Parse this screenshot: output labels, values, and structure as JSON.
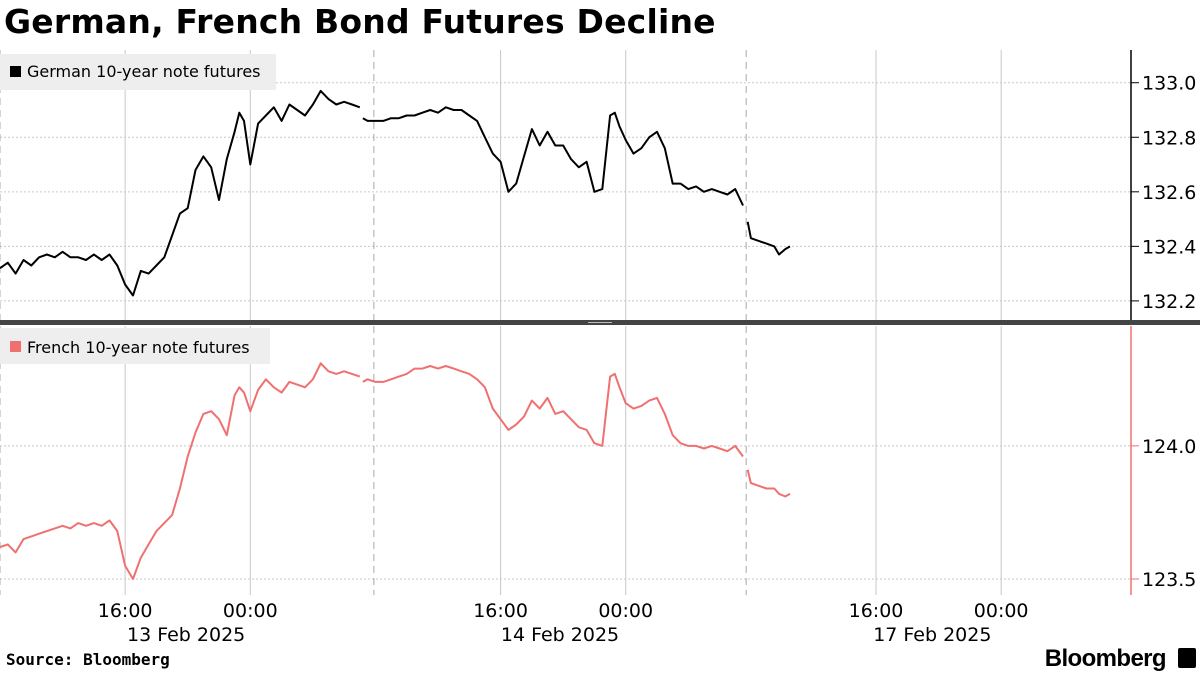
{
  "title": "German, French Bond Futures Decline",
  "source": "Source: Bloomberg",
  "brand": "Bloomberg",
  "colors": {
    "german": "#000000",
    "french": "#f07070",
    "grid": "#c8c8c8",
    "legend_bg": "#eeeeee"
  },
  "chart_data": [
    {
      "type": "line",
      "title": "",
      "series": [
        {
          "name": "German 10-year note futures",
          "color": "#000000"
        }
      ],
      "ylim": [
        132.13,
        133.12
      ],
      "yticks": [
        132.2,
        132.4,
        132.6,
        132.8,
        133.0
      ],
      "ytick_labels": [
        "132.2",
        "132.4",
        "132.6",
        "132.8",
        "133.0"
      ],
      "legend_position": "top-left",
      "x_unit": "trading hours from 13 Feb 2025 08:00",
      "segments": [
        [
          [
            0.0,
            132.32
          ],
          [
            0.5,
            132.34
          ],
          [
            1.0,
            132.3
          ],
          [
            1.5,
            132.35
          ],
          [
            2.0,
            132.33
          ],
          [
            2.5,
            132.36
          ],
          [
            3.0,
            132.37
          ],
          [
            3.5,
            132.36
          ],
          [
            4.0,
            132.38
          ],
          [
            4.5,
            132.36
          ],
          [
            5.0,
            132.36
          ],
          [
            5.5,
            132.35
          ],
          [
            6.0,
            132.37
          ],
          [
            6.5,
            132.35
          ],
          [
            7.0,
            132.37
          ],
          [
            7.5,
            132.33
          ],
          [
            8.0,
            132.26
          ],
          [
            8.5,
            132.22
          ],
          [
            9.0,
            132.31
          ],
          [
            9.5,
            132.3
          ],
          [
            10.0,
            132.33
          ],
          [
            10.5,
            132.36
          ],
          [
            11.0,
            132.44
          ],
          [
            11.5,
            132.52
          ],
          [
            12.0,
            132.54
          ],
          [
            12.5,
            132.68
          ],
          [
            13.0,
            132.73
          ],
          [
            13.5,
            132.69
          ],
          [
            14.0,
            132.57
          ],
          [
            14.5,
            132.72
          ],
          [
            15.0,
            132.82
          ],
          [
            15.3,
            132.89
          ],
          [
            15.6,
            132.86
          ],
          [
            16.0,
            132.7
          ],
          [
            16.5,
            132.85
          ],
          [
            17.0,
            132.88
          ],
          [
            17.5,
            132.91
          ],
          [
            18.0,
            132.86
          ],
          [
            18.5,
            132.92
          ],
          [
            19.0,
            132.9
          ],
          [
            19.5,
            132.88
          ],
          [
            20.0,
            132.92
          ],
          [
            20.5,
            132.97
          ],
          [
            21.0,
            132.94
          ],
          [
            21.5,
            132.92
          ],
          [
            22.0,
            132.93
          ],
          [
            22.5,
            132.92
          ],
          [
            23.0,
            132.91
          ]
        ],
        [
          [
            23.2,
            132.87
          ],
          [
            23.5,
            132.86
          ],
          [
            24.0,
            132.86
          ],
          [
            24.5,
            132.86
          ],
          [
            25.0,
            132.87
          ],
          [
            25.5,
            132.87
          ],
          [
            26.0,
            132.88
          ],
          [
            26.5,
            132.88
          ],
          [
            27.0,
            132.89
          ],
          [
            27.5,
            132.9
          ],
          [
            28.0,
            132.89
          ],
          [
            28.5,
            132.91
          ],
          [
            29.0,
            132.9
          ],
          [
            29.5,
            132.9
          ],
          [
            30.0,
            132.88
          ],
          [
            30.5,
            132.86
          ],
          [
            31.0,
            132.8
          ],
          [
            31.5,
            132.74
          ],
          [
            32.0,
            132.71
          ],
          [
            32.5,
            132.6
          ],
          [
            33.0,
            132.63
          ],
          [
            33.5,
            132.73
          ],
          [
            34.0,
            132.83
          ],
          [
            34.5,
            132.77
          ],
          [
            35.0,
            132.82
          ],
          [
            35.5,
            132.77
          ],
          [
            36.0,
            132.77
          ],
          [
            36.5,
            132.72
          ],
          [
            37.0,
            132.69
          ],
          [
            37.5,
            132.71
          ],
          [
            38.0,
            132.6
          ],
          [
            38.5,
            132.61
          ],
          [
            39.0,
            132.88
          ],
          [
            39.3,
            132.89
          ],
          [
            39.6,
            132.84
          ],
          [
            40.0,
            132.79
          ],
          [
            40.5,
            132.74
          ],
          [
            41.0,
            132.76
          ],
          [
            41.5,
            132.8
          ],
          [
            42.0,
            132.82
          ],
          [
            42.5,
            132.76
          ],
          [
            43.0,
            132.63
          ],
          [
            43.5,
            132.63
          ],
          [
            44.0,
            132.61
          ],
          [
            44.5,
            132.62
          ],
          [
            45.0,
            132.6
          ],
          [
            45.5,
            132.61
          ],
          [
            46.0,
            132.6
          ],
          [
            46.5,
            132.59
          ],
          [
            47.0,
            132.61
          ],
          [
            47.5,
            132.55
          ]
        ],
        [
          [
            47.8,
            132.49
          ],
          [
            48.0,
            132.43
          ],
          [
            48.5,
            132.42
          ],
          [
            49.0,
            132.41
          ],
          [
            49.5,
            132.4
          ],
          [
            49.8,
            132.37
          ],
          [
            50.2,
            132.39
          ],
          [
            50.5,
            132.4
          ]
        ]
      ]
    },
    {
      "type": "line",
      "title": "",
      "series": [
        {
          "name": "French 10-year note futures",
          "color": "#f07070"
        }
      ],
      "ylim": [
        123.44,
        124.45
      ],
      "yticks": [
        123.5,
        124.0
      ],
      "ytick_labels": [
        "123.5",
        "124.0"
      ],
      "legend_position": "top-left",
      "x_unit": "trading hours from 13 Feb 2025 08:00",
      "segments": [
        [
          [
            0.0,
            123.62
          ],
          [
            0.5,
            123.63
          ],
          [
            1.0,
            123.6
          ],
          [
            1.5,
            123.65
          ],
          [
            2.0,
            123.66
          ],
          [
            2.5,
            123.67
          ],
          [
            3.0,
            123.68
          ],
          [
            3.5,
            123.69
          ],
          [
            4.0,
            123.7
          ],
          [
            4.5,
            123.69
          ],
          [
            5.0,
            123.71
          ],
          [
            5.5,
            123.7
          ],
          [
            6.0,
            123.71
          ],
          [
            6.5,
            123.7
          ],
          [
            7.0,
            123.72
          ],
          [
            7.5,
            123.68
          ],
          [
            8.0,
            123.55
          ],
          [
            8.5,
            123.5
          ],
          [
            9.0,
            123.58
          ],
          [
            9.5,
            123.63
          ],
          [
            10.0,
            123.68
          ],
          [
            10.5,
            123.71
          ],
          [
            11.0,
            123.74
          ],
          [
            11.5,
            123.84
          ],
          [
            12.0,
            123.96
          ],
          [
            12.5,
            124.05
          ],
          [
            13.0,
            124.12
          ],
          [
            13.5,
            124.13
          ],
          [
            14.0,
            124.1
          ],
          [
            14.5,
            124.04
          ],
          [
            15.0,
            124.19
          ],
          [
            15.3,
            124.22
          ],
          [
            15.6,
            124.2
          ],
          [
            16.0,
            124.13
          ],
          [
            16.5,
            124.21
          ],
          [
            17.0,
            124.25
          ],
          [
            17.5,
            124.22
          ],
          [
            18.0,
            124.2
          ],
          [
            18.5,
            124.24
          ],
          [
            19.0,
            124.23
          ],
          [
            19.5,
            124.22
          ],
          [
            20.0,
            124.25
          ],
          [
            20.5,
            124.31
          ],
          [
            21.0,
            124.28
          ],
          [
            21.5,
            124.27
          ],
          [
            22.0,
            124.28
          ],
          [
            22.5,
            124.27
          ],
          [
            23.0,
            124.26
          ]
        ],
        [
          [
            23.2,
            124.24
          ],
          [
            23.5,
            124.25
          ],
          [
            24.0,
            124.24
          ],
          [
            24.5,
            124.24
          ],
          [
            25.0,
            124.25
          ],
          [
            25.5,
            124.26
          ],
          [
            26.0,
            124.27
          ],
          [
            26.5,
            124.29
          ],
          [
            27.0,
            124.29
          ],
          [
            27.5,
            124.3
          ],
          [
            28.0,
            124.29
          ],
          [
            28.5,
            124.3
          ],
          [
            29.0,
            124.29
          ],
          [
            29.5,
            124.28
          ],
          [
            30.0,
            124.27
          ],
          [
            30.5,
            124.25
          ],
          [
            31.0,
            124.22
          ],
          [
            31.5,
            124.14
          ],
          [
            32.0,
            124.1
          ],
          [
            32.5,
            124.06
          ],
          [
            33.0,
            124.08
          ],
          [
            33.5,
            124.11
          ],
          [
            34.0,
            124.17
          ],
          [
            34.5,
            124.14
          ],
          [
            35.0,
            124.18
          ],
          [
            35.5,
            124.12
          ],
          [
            36.0,
            124.13
          ],
          [
            36.5,
            124.1
          ],
          [
            37.0,
            124.07
          ],
          [
            37.5,
            124.06
          ],
          [
            38.0,
            124.01
          ],
          [
            38.5,
            124.0
          ],
          [
            39.0,
            124.26
          ],
          [
            39.3,
            124.27
          ],
          [
            39.6,
            124.22
          ],
          [
            40.0,
            124.16
          ],
          [
            40.5,
            124.14
          ],
          [
            41.0,
            124.15
          ],
          [
            41.5,
            124.17
          ],
          [
            42.0,
            124.18
          ],
          [
            42.5,
            124.12
          ],
          [
            43.0,
            124.04
          ],
          [
            43.5,
            124.01
          ],
          [
            44.0,
            124.0
          ],
          [
            44.5,
            124.0
          ],
          [
            45.0,
            123.99
          ],
          [
            45.5,
            124.0
          ],
          [
            46.0,
            123.99
          ],
          [
            46.5,
            123.98
          ],
          [
            47.0,
            124.0
          ],
          [
            47.5,
            123.96
          ]
        ],
        [
          [
            47.8,
            123.91
          ],
          [
            48.0,
            123.86
          ],
          [
            48.5,
            123.85
          ],
          [
            49.0,
            123.84
          ],
          [
            49.5,
            123.84
          ],
          [
            49.8,
            123.82
          ],
          [
            50.2,
            123.81
          ],
          [
            50.5,
            123.82
          ]
        ]
      ]
    }
  ],
  "x_axis": {
    "time_ticks": [
      {
        "label": "16:00",
        "h": 8
      },
      {
        "label": "00:00",
        "h": 16
      },
      {
        "label": "16:00",
        "h": 32
      },
      {
        "label": "00:00",
        "h": 40
      },
      {
        "label": "16:00",
        "h": 56
      },
      {
        "label": "00:00",
        "h": 64
      }
    ],
    "day_boundaries": [
      0,
      23.9,
      47.7
    ],
    "date_labels": [
      {
        "label": "13 Feb 2025",
        "h": 11.9
      },
      {
        "label": "14 Feb 2025",
        "h": 35.8
      },
      {
        "label": "17 Feb 2025",
        "h": 59.6
      }
    ],
    "range": [
      0,
      72.3
    ]
  }
}
